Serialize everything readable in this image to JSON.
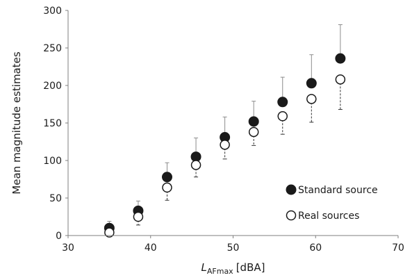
{
  "chart_data": {
    "type": "scatter",
    "xlabel_main": "L",
    "xlabel_sub": "AFmax",
    "xlabel_unit": "[dBA]",
    "ylabel": "Mean magnitude estimates",
    "xlim": [
      30,
      70
    ],
    "ylim": [
      0,
      300
    ],
    "xticks": [
      "30",
      "40",
      "50",
      "60",
      "70"
    ],
    "yticks": [
      "0",
      "50",
      "100",
      "150",
      "200",
      "250",
      "300"
    ],
    "grid": false,
    "legend_position": "lower-right",
    "error_bars": "standard source: upward bars; real sources: downward bars",
    "series": [
      {
        "name": "Standard source",
        "marker": "filled-circle",
        "color": "#1a1a1a",
        "points": [
          {
            "x": 35,
            "y": 10,
            "err": 9
          },
          {
            "x": 38.5,
            "y": 33,
            "err": 13
          },
          {
            "x": 42,
            "y": 78,
            "err": 19
          },
          {
            "x": 45.5,
            "y": 105,
            "err": 25
          },
          {
            "x": 49,
            "y": 131,
            "err": 27
          },
          {
            "x": 52.5,
            "y": 152,
            "err": 27
          },
          {
            "x": 56,
            "y": 178,
            "err": 33
          },
          {
            "x": 59.5,
            "y": 203,
            "err": 38
          },
          {
            "x": 63,
            "y": 236,
            "err": 45
          }
        ]
      },
      {
        "name": "Real sources",
        "marker": "open-circle",
        "color": "#1a1a1a",
        "points": [
          {
            "x": 35,
            "y": 4,
            "err": 2
          },
          {
            "x": 38.5,
            "y": 25,
            "err": 11
          },
          {
            "x": 42,
            "y": 64,
            "err": 17
          },
          {
            "x": 45.5,
            "y": 94,
            "err": 16
          },
          {
            "x": 49,
            "y": 121,
            "err": 19
          },
          {
            "x": 52.5,
            "y": 138,
            "err": 18
          },
          {
            "x": 56,
            "y": 159,
            "err": 24
          },
          {
            "x": 59.5,
            "y": 182,
            "err": 31
          },
          {
            "x": 63,
            "y": 208,
            "err": 40
          }
        ]
      }
    ]
  }
}
